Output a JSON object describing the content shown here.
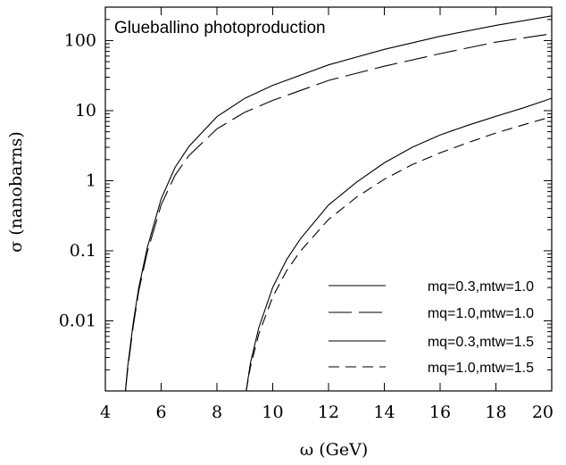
{
  "chart_data": {
    "type": "line",
    "title": "Glueballino photoproduction",
    "xlabel": "ω (GeV)",
    "ylabel": "σ (nanobarns)",
    "xlim": [
      4,
      20
    ],
    "ylim": [
      0.001,
      300
    ],
    "yscale": "log",
    "grid": false,
    "legend_position": "bottom-right",
    "x_ticks": [
      "4",
      "6",
      "8",
      "10",
      "12",
      "14",
      "16",
      "18",
      "20"
    ],
    "y_ticks": [
      "0.01",
      "0.1",
      "1",
      "10",
      "100"
    ],
    "series": [
      {
        "name": "mq=0.3,mtw=1.0",
        "style": "solid",
        "x": [
          4.72,
          4.8,
          5.0,
          5.2,
          5.5,
          6.0,
          6.5,
          7.0,
          8.0,
          9.0,
          10.0,
          12.0,
          14.0,
          16.0,
          18.0,
          20.0
        ],
        "y": [
          0.001,
          0.0022,
          0.0095,
          0.03,
          0.11,
          0.55,
          1.55,
          3.1,
          8.2,
          15.0,
          23.0,
          45.0,
          75.0,
          115.0,
          165.0,
          225.0
        ]
      },
      {
        "name": "mq=1.0,mtw=1.0",
        "style": "long-dash",
        "x": [
          4.72,
          4.8,
          5.0,
          5.2,
          5.5,
          6.0,
          6.5,
          7.0,
          8.0,
          9.0,
          10.0,
          12.0,
          14.0,
          16.0,
          18.0,
          20.0
        ],
        "y": [
          0.001,
          0.002,
          0.0085,
          0.027,
          0.095,
          0.45,
          1.2,
          2.3,
          5.5,
          9.5,
          14.0,
          27.0,
          43.0,
          65.0,
          95.0,
          125.0
        ]
      },
      {
        "name": "mq=0.3,mtw=1.5",
        "style": "solid",
        "x": [
          9.05,
          9.2,
          9.5,
          10.0,
          10.5,
          11.0,
          12.0,
          13.0,
          14.0,
          15.0,
          16.0,
          17.0,
          18.0,
          19.0,
          20.0
        ],
        "y": [
          0.001,
          0.0025,
          0.008,
          0.03,
          0.075,
          0.15,
          0.45,
          0.95,
          1.8,
          3.0,
          4.5,
          6.2,
          8.3,
          11.0,
          15.0
        ]
      },
      {
        "name": "mq=1.0,mtw=1.5",
        "style": "dash",
        "x": [
          9.05,
          9.2,
          9.5,
          10.0,
          10.5,
          11.0,
          12.0,
          13.0,
          14.0,
          15.0,
          16.0,
          17.0,
          18.0,
          19.0,
          20.0
        ],
        "y": [
          0.001,
          0.0022,
          0.0065,
          0.022,
          0.052,
          0.1,
          0.28,
          0.58,
          1.05,
          1.7,
          2.5,
          3.5,
          4.8,
          6.3,
          8.2
        ]
      }
    ]
  }
}
